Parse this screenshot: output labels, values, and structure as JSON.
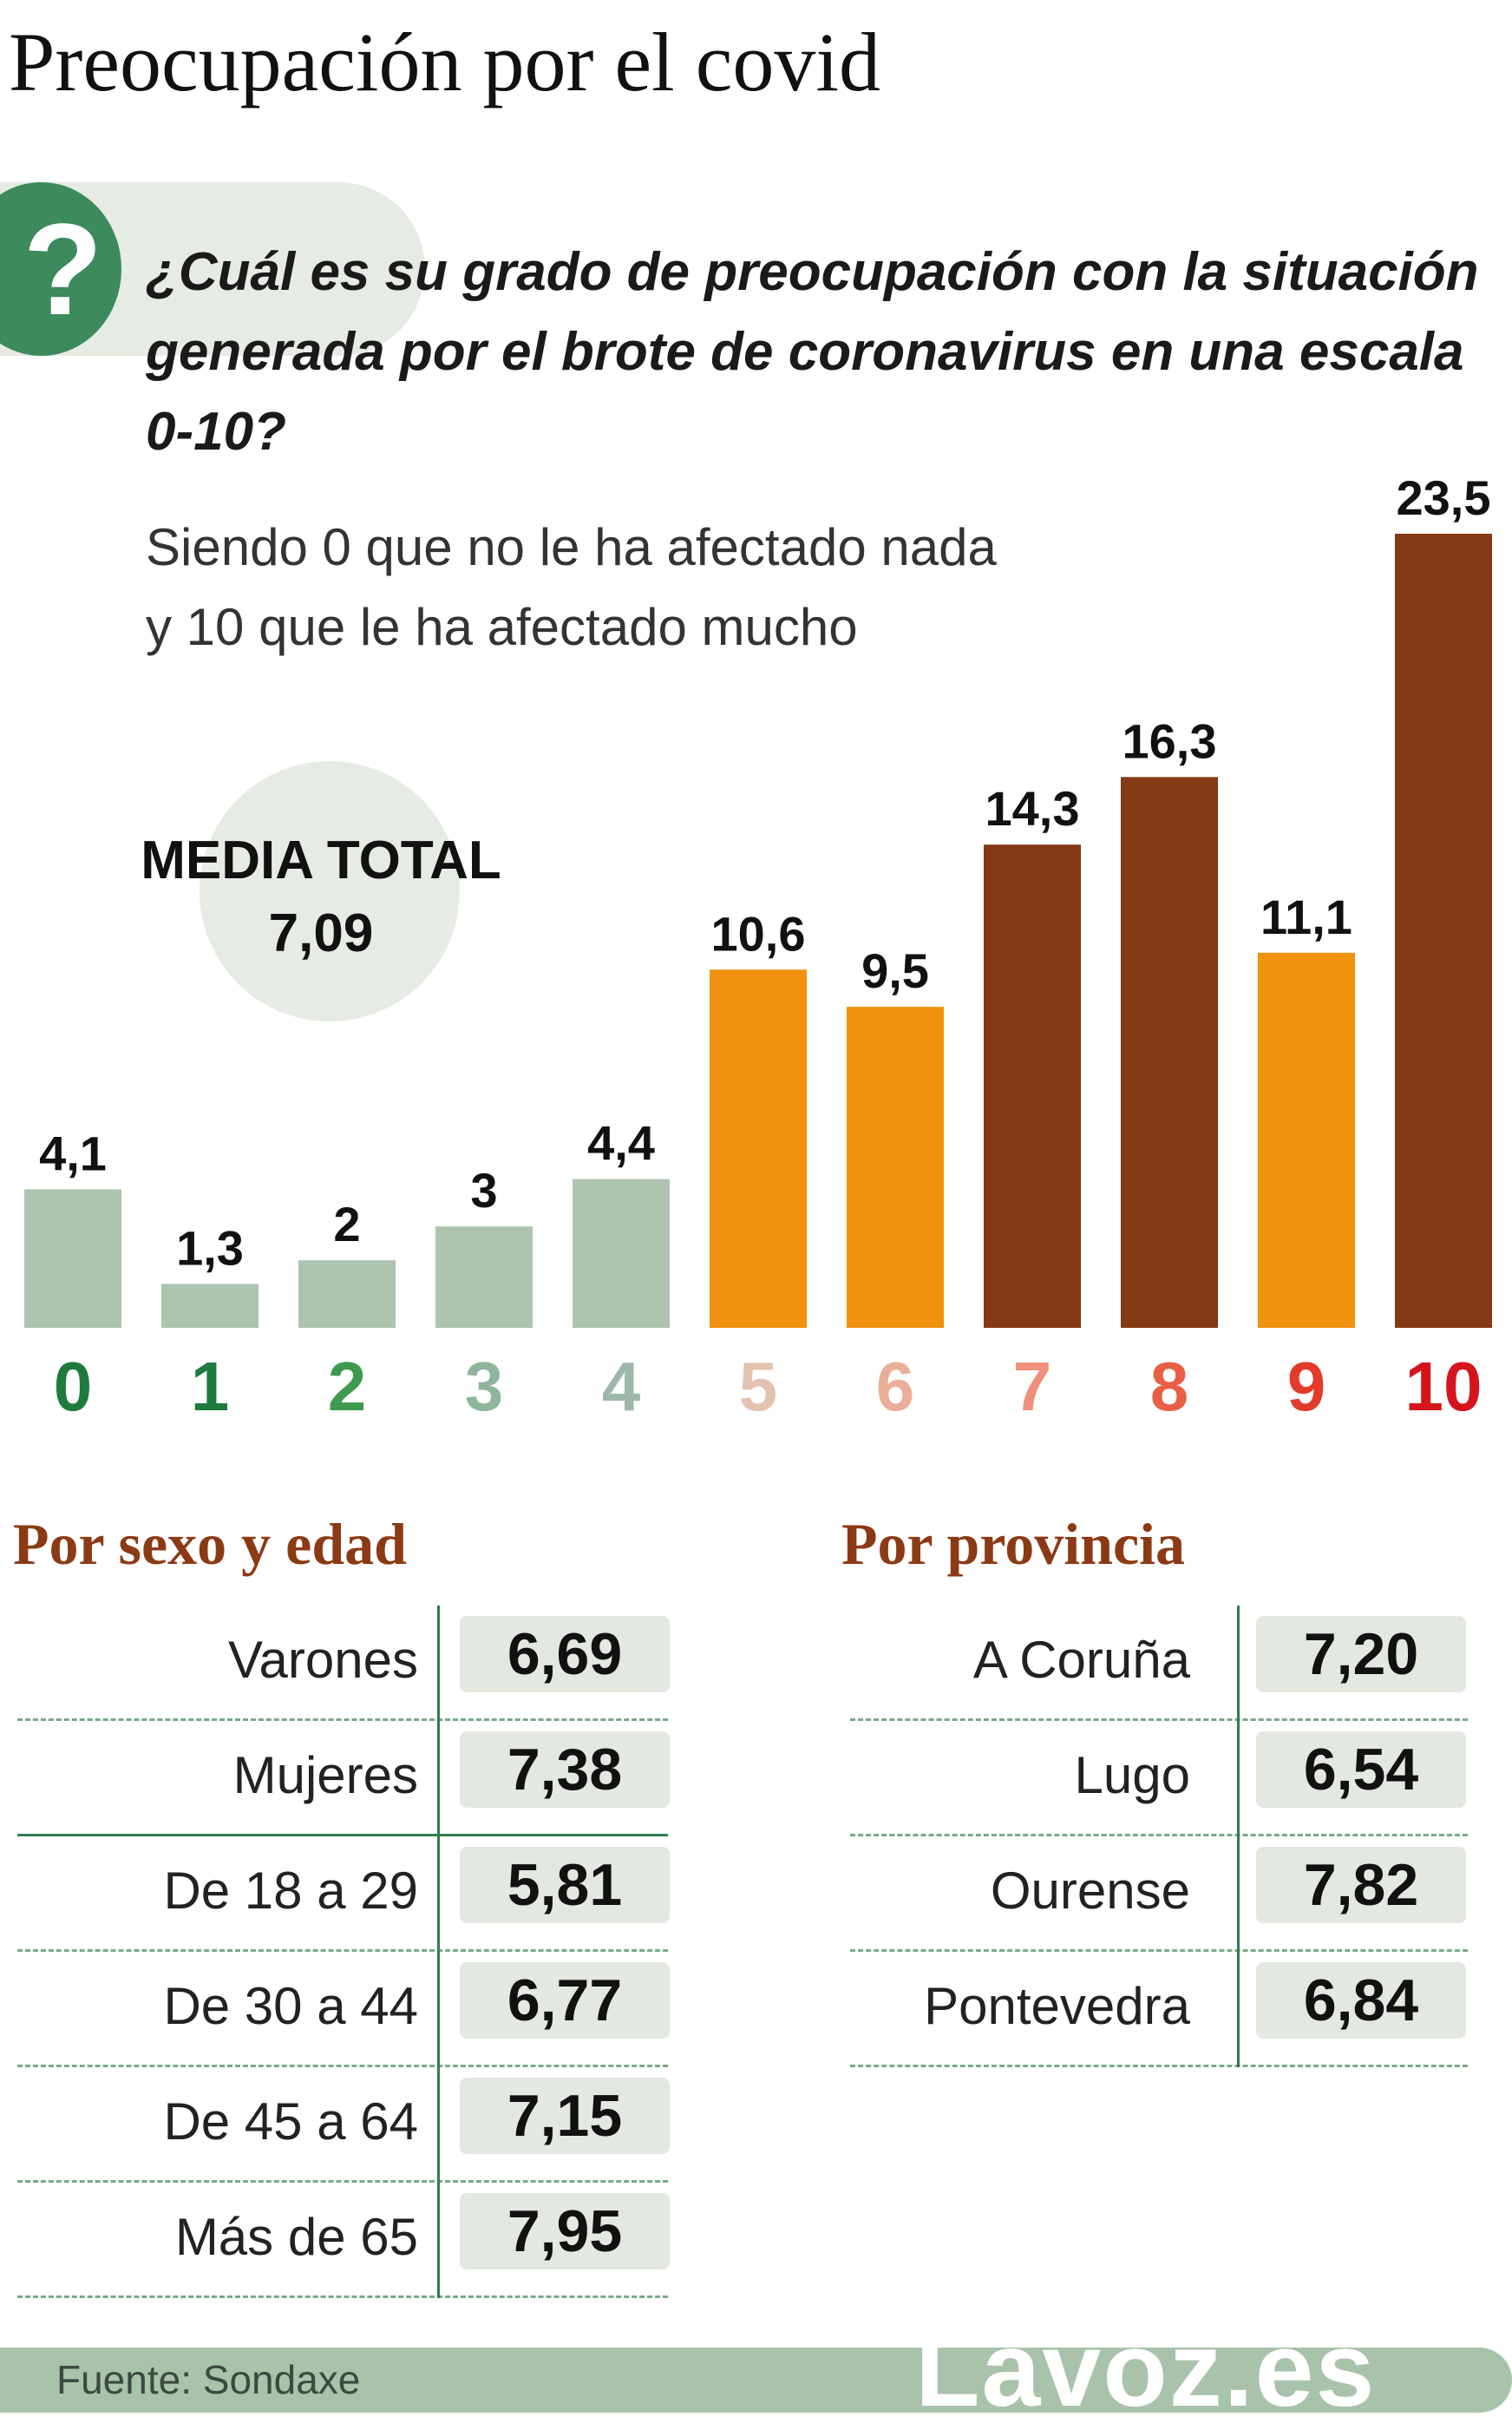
{
  "title": "Preocupación por el covid",
  "question_mark": "?",
  "question": "¿Cuál es su grado de preocupación con la situación generada por el brote de coronavirus en una escala 0-10?",
  "subtitle_line1": "Siendo 0 que no le ha afectado nada",
  "subtitle_line2": "y 10 que le ha afectado mucho",
  "media": {
    "label": "MEDIA TOTAL",
    "value": "7,09"
  },
  "chart_data": {
    "type": "bar",
    "categories": [
      "0",
      "1",
      "2",
      "3",
      "4",
      "5",
      "6",
      "7",
      "8",
      "9",
      "10"
    ],
    "values": [
      4.1,
      1.3,
      2,
      3,
      4.4,
      10.6,
      9.5,
      14.3,
      16.3,
      11.1,
      23.5
    ],
    "value_labels": [
      "4,1",
      "1,3",
      "2",
      "3",
      "4,4",
      "10,6",
      "9,5",
      "14,3",
      "16,3",
      "11,1",
      "23,5"
    ],
    "bar_colors": [
      "#adc4af",
      "#adc4af",
      "#adc4af",
      "#adc4af",
      "#adc4af",
      "#f0920e",
      "#f0920e",
      "#833a15",
      "#833a15",
      "#f0920e",
      "#833a15"
    ],
    "category_colors": [
      "#1f7a3e",
      "#1f7a3e",
      "#3f9a4e",
      "#8fb59c",
      "#9fb7aa",
      "#e3c2b0",
      "#ebae98",
      "#f0907a",
      "#e85f45",
      "#e23b2a",
      "#d6141e"
    ],
    "ylim": [
      0,
      23.5
    ],
    "grid": false
  },
  "sexo_edad": {
    "title": "Por sexo y edad",
    "rows": [
      {
        "label": "Varones",
        "value": "6,69"
      },
      {
        "label": "Mujeres",
        "value": "7,38"
      },
      {
        "label": "De 18 a 29",
        "value": "5,81"
      },
      {
        "label": "De 30 a 44",
        "value": "6,77"
      },
      {
        "label": "De 45 a 64",
        "value": "7,15"
      },
      {
        "label": "Más de 65",
        "value": "7,95"
      }
    ]
  },
  "provincia": {
    "title": "Por provincia",
    "rows": [
      {
        "label": "A Coruña",
        "value": "7,20"
      },
      {
        "label": "Lugo",
        "value": "6,54"
      },
      {
        "label": "Ourense",
        "value": "7,82"
      },
      {
        "label": "Pontevedra",
        "value": "6,84"
      }
    ]
  },
  "source": "Fuente: Sondaxe",
  "brand": "Lavoz.es",
  "colors": {
    "accent_green": "#3d8a5c",
    "section_brown": "#8b3a15",
    "pill_bg": "#e6ebe4"
  }
}
